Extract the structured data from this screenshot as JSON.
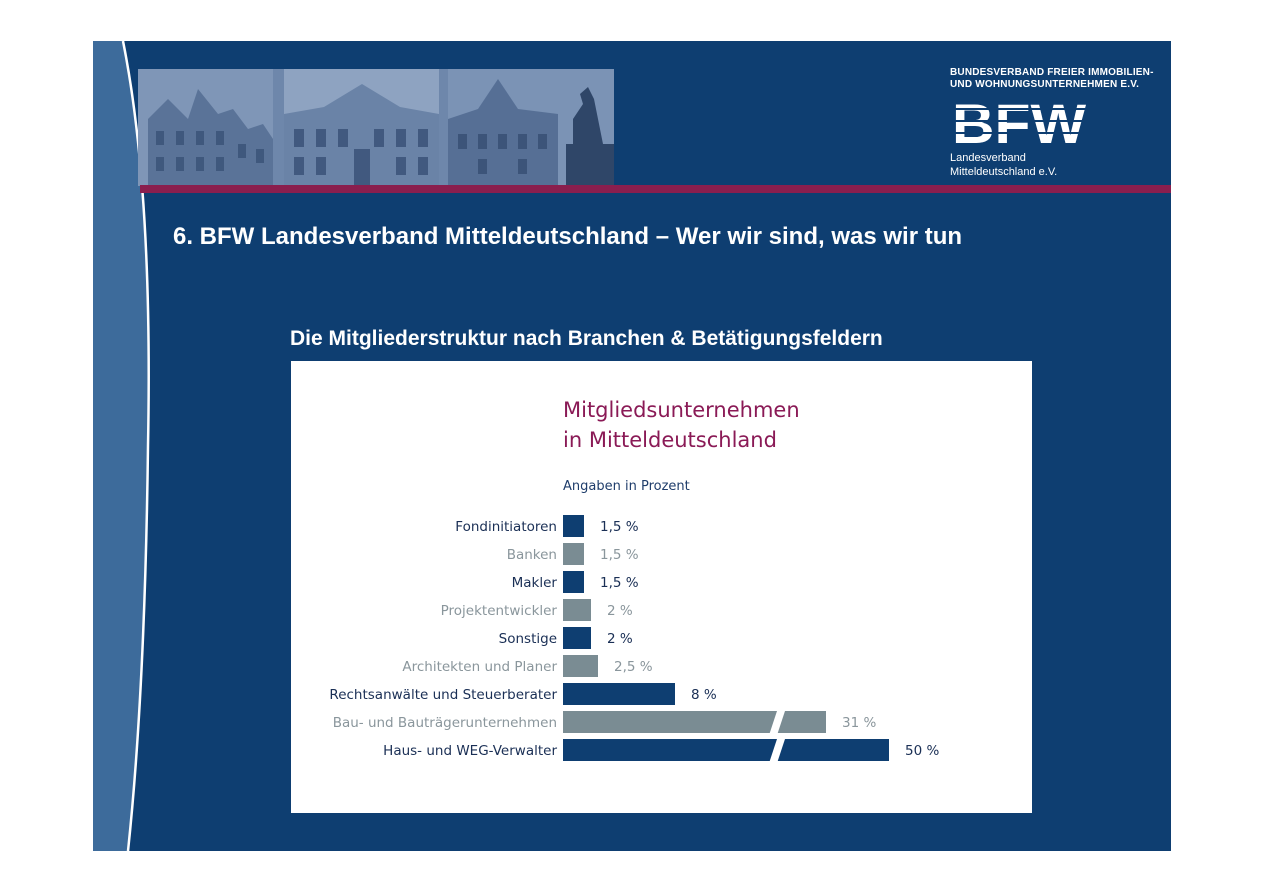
{
  "header": {
    "association_line1": "BUNDESVERBAND FREIER IMMOBILIEN-",
    "association_line2": "UND WOHNUNGSUNTERNEHMEN E.V.",
    "logo_text": "BFW",
    "regional_line1": "Landesverband",
    "regional_line2": "Mitteldeutschland e.V."
  },
  "page_title": "6.  BFW Landesverband Mitteldeutschland – Wer wir sind, was wir tun",
  "section_heading": "Die Mitgliederstruktur nach Branchen & Betätigungsfeldern",
  "colors": {
    "background": "#0e3e71",
    "accent_bar": "#8a1e4e",
    "left_band": "#3d6b9b",
    "bar_dark": "#0e3e71",
    "bar_grey": "#7a8c93",
    "chart_title": "#8a1a56"
  },
  "chart_data": {
    "type": "bar",
    "orientation": "horizontal",
    "title_lines": [
      "Mitgliedsunternehmen",
      "in Mitteldeutschland"
    ],
    "subtitle": "Angaben in Prozent",
    "categories": [
      "Fondinitiatoren",
      "Banken",
      "Makler",
      "Projektentwickler",
      "Sonstige",
      "Architekten und Planer",
      "Rechtsanwälte und Steuerberater",
      "Bau- und Bauträgerunternehmen",
      "Haus- und WEG-Verwalter"
    ],
    "values": [
      1.5,
      1.5,
      1.5,
      2,
      2,
      2.5,
      8,
      31,
      50
    ],
    "value_labels": [
      "1,5 %",
      "1,5 %",
      "1,5 %",
      "2 %",
      "2 %",
      "2,5 %",
      "8 %",
      "31 %",
      "50 %"
    ],
    "bar_colors": [
      "#0e3e71",
      "#7a8c93",
      "#0e3e71",
      "#7a8c93",
      "#0e3e71",
      "#7a8c93",
      "#0e3e71",
      "#7a8c93",
      "#0e3e71"
    ],
    "label_colors": [
      "#1a2f55",
      "#8a969c",
      "#1a2f55",
      "#8a969c",
      "#1a2f55",
      "#8a969c",
      "#1a2f55",
      "#8a969c",
      "#1a2f55"
    ],
    "broken_axis": true,
    "broken_bars": [
      "Bau- und Bauträgerunternehmen",
      "Haus- und WEG-Verwalter"
    ]
  }
}
